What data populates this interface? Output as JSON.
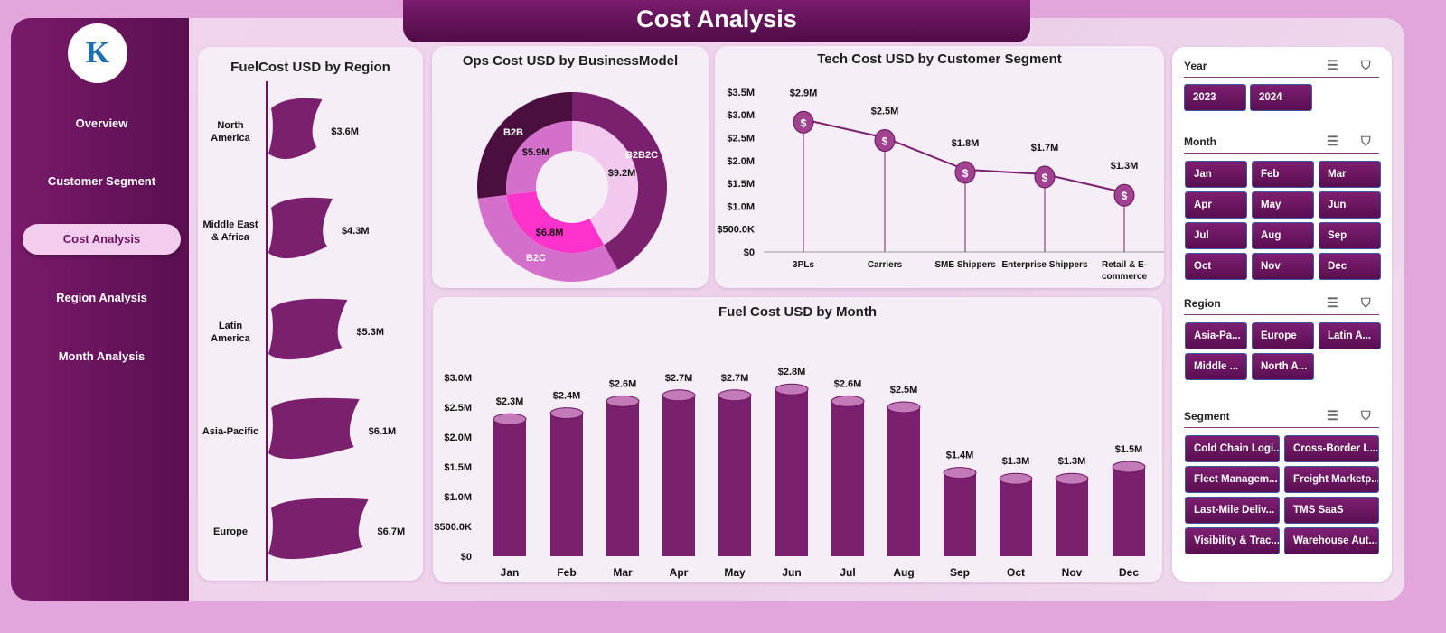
{
  "title": "Cost Analysis",
  "logo_text": "K",
  "nav": [
    {
      "label": "Overview"
    },
    {
      "label": "Customer Segment"
    },
    {
      "label": "Cost Analysis",
      "active": true
    },
    {
      "label": "Region Analysis"
    },
    {
      "label": "Month Analysis"
    }
  ],
  "colors": {
    "primary": "#7a1a6c",
    "dark": "#4e0c45",
    "bar": "#7b1f6f",
    "magenta": "#ff33cc",
    "orchid": "#d46fcb",
    "light_pink": "#f2c8ee"
  },
  "slicers": {
    "year": {
      "title": "Year",
      "items": [
        "2023",
        "2024"
      ]
    },
    "month": {
      "title": "Month",
      "items": [
        "Jan",
        "Feb",
        "Mar",
        "Apr",
        "May",
        "Jun",
        "Jul",
        "Aug",
        "Sep",
        "Oct",
        "Nov",
        "Dec"
      ]
    },
    "region": {
      "title": "Region",
      "items": [
        "Asia-Pa...",
        "Europe",
        "Latin A...",
        "Middle ...",
        "North A..."
      ]
    },
    "segment": {
      "title": "Segment",
      "items": [
        "Cold Chain Logi...",
        "Cross-Border L...",
        "Fleet Managem...",
        "Freight Marketp...",
        "Last-Mile Deliv...",
        "TMS SaaS",
        "Visibility & Trac...",
        "Warehouse Aut..."
      ]
    },
    "icons": [
      "multi-select-icon",
      "clear-filter-icon"
    ]
  },
  "chart_data": [
    {
      "type": "bar",
      "orientation": "horizontal",
      "title": "FuelCost USD by Region",
      "categories": [
        "North America",
        "Middle East & Africa",
        "Latin America",
        "Asia-Pacific",
        "Europe"
      ],
      "values": [
        3.6,
        4.3,
        5.3,
        6.1,
        6.7
      ],
      "data_labels": [
        "$3.6M",
        "$4.3M",
        "$5.3M",
        "$6.1M",
        "$6.7M"
      ],
      "unit": "USD millions"
    },
    {
      "type": "pie",
      "subtype": "double-donut",
      "title": "Ops Cost USD by BusinessModel",
      "categories": [
        "B2B",
        "B2B2C",
        "B2C"
      ],
      "values": [
        5.9,
        9.2,
        6.8
      ],
      "data_labels": [
        "$5.9M",
        "$9.2M",
        "$6.8M"
      ]
    },
    {
      "type": "line",
      "title": "Tech Cost USD by  Customer Segment",
      "categories": [
        "3PLs",
        "Carriers",
        "SME Shippers",
        "Enterprise Shippers",
        "Retail & E-commerce"
      ],
      "values": [
        2.9,
        2.5,
        1.8,
        1.7,
        1.3
      ],
      "data_labels": [
        "$2.9M",
        "$2.5M",
        "$1.8M",
        "$1.7M",
        "$1.3M"
      ],
      "ylim": [
        0,
        3.5
      ],
      "yticks": [
        "$0",
        "$500.0K",
        "$1.0M",
        "$1.5M",
        "$2.0M",
        "$2.5M",
        "$3.0M",
        "$3.5M"
      ],
      "marker": "money-bag-icon"
    },
    {
      "type": "bar",
      "title": "Fuel Cost USD by Month",
      "categories": [
        "Jan",
        "Feb",
        "Mar",
        "Apr",
        "May",
        "Jun",
        "Jul",
        "Aug",
        "Sep",
        "Oct",
        "Nov",
        "Dec"
      ],
      "values": [
        2.3,
        2.4,
        2.6,
        2.7,
        2.7,
        2.8,
        2.6,
        2.5,
        1.4,
        1.3,
        1.3,
        1.5
      ],
      "data_labels": [
        "$2.3M",
        "$2.4M",
        "$2.6M",
        "$2.7M",
        "$2.7M",
        "$2.8M",
        "$2.6M",
        "$2.5M",
        "$1.4M",
        "$1.3M",
        "$1.3M",
        "$1.5M"
      ],
      "ylim": [
        0,
        3.0
      ],
      "yticks": [
        "$0",
        "$500.0K",
        "$1.0M",
        "$1.5M",
        "$2.0M",
        "$2.5M",
        "$3.0M"
      ]
    }
  ]
}
